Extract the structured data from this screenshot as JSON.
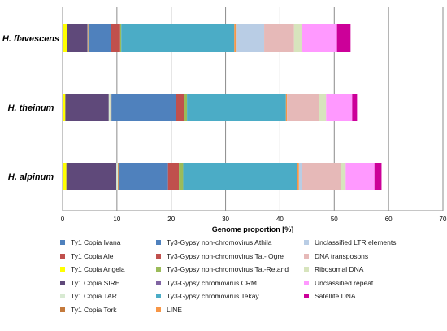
{
  "chart_data": {
    "type": "bar",
    "orientation": "horizontal",
    "stacked": true,
    "categories": [
      "H. flavescens",
      "H. theinum",
      "H. alpinum"
    ],
    "xlabel": "Genome proportion [%]",
    "xlim": [
      0,
      70
    ],
    "xticks": [
      0,
      10,
      20,
      30,
      40,
      50,
      60,
      70
    ],
    "grid": "vertical",
    "legend_position": "bottom",
    "series": [
      {
        "name": "Ty1 Copia Ivana",
        "color": "#4f81bd",
        "values": [
          0,
          0,
          0
        ]
      },
      {
        "name": "Ty1 Copia Ale",
        "color": "#c0504d",
        "values": [
          0,
          0,
          0
        ]
      },
      {
        "name": "Ty1 Copia Angela",
        "color": "#ffff00",
        "values": [
          0.8,
          0.5,
          0.7
        ]
      },
      {
        "name": "Ty1 Copia SIRE",
        "color": "#5f497a",
        "values": [
          3.8,
          8.0,
          9.2
        ]
      },
      {
        "name": "Ty1 Copia TAR",
        "color": "#d8ead2",
        "values": [
          0.1,
          0.3,
          0.3
        ]
      },
      {
        "name": "Ty1 Copia Tork",
        "color": "#c47a3c",
        "values": [
          0.2,
          0.2,
          0.2
        ]
      },
      {
        "name": "Ty3-Gypsy non-chromovirus Athila",
        "color": "#4f81bd",
        "values": [
          4.0,
          11.8,
          9.0
        ]
      },
      {
        "name": "Ty3-Gypsy non-chromovirus Tat- Ogre",
        "color": "#c0504d",
        "values": [
          1.7,
          1.5,
          2.0
        ]
      },
      {
        "name": "Ty3-Gypsy non-chromovirus Tat-Retand",
        "color": "#9bbb59",
        "values": [
          0.2,
          0.6,
          0.8
        ]
      },
      {
        "name": "Ty3-Gypsy chromovirus CRM",
        "color": "#8064a2",
        "values": [
          0,
          0,
          0
        ]
      },
      {
        "name": "Ty3-Gypsy chromovirus Tekay",
        "color": "#4bacc6",
        "values": [
          20.8,
          18.2,
          21.0
        ]
      },
      {
        "name": "LINE",
        "color": "#f79646",
        "values": [
          0.3,
          0.2,
          0.3
        ]
      },
      {
        "name": "Unclassified  LTR elements",
        "color": "#b9cde5",
        "values": [
          5.2,
          0,
          0.5
        ]
      },
      {
        "name": "DNA transposons",
        "color": "#e6b9b8",
        "values": [
          5.5,
          5.9,
          7.3
        ]
      },
      {
        "name": "Ribosomal DNA",
        "color": "#d7e4bd",
        "values": [
          1.4,
          1.3,
          0.8
        ]
      },
      {
        "name": "Unclassified repeat",
        "color": "#ff99ff",
        "values": [
          6.5,
          4.8,
          5.3
        ]
      },
      {
        "name": "Satellite DNA",
        "color": "#cc0099",
        "values": [
          2.5,
          0.9,
          1.3
        ]
      }
    ],
    "legend_order": [
      "Ty1 Copia Ivana",
      "Ty3-Gypsy non-chromovirus Athila",
      "Unclassified  LTR elements",
      "Ty1 Copia Ale",
      "Ty3-Gypsy non-chromovirus Tat- Ogre",
      "DNA transposons",
      "Ty1 Copia Angela",
      "Ty3-Gypsy non-chromovirus Tat-Retand",
      "Ribosomal DNA",
      "Ty1 Copia SIRE",
      "Ty3-Gypsy chromovirus CRM",
      "Unclassified repeat",
      "Ty1 Copia TAR",
      "Ty3-Gypsy chromovirus Tekay",
      "Satellite DNA",
      "Ty1 Copia Tork",
      "LINE"
    ]
  }
}
